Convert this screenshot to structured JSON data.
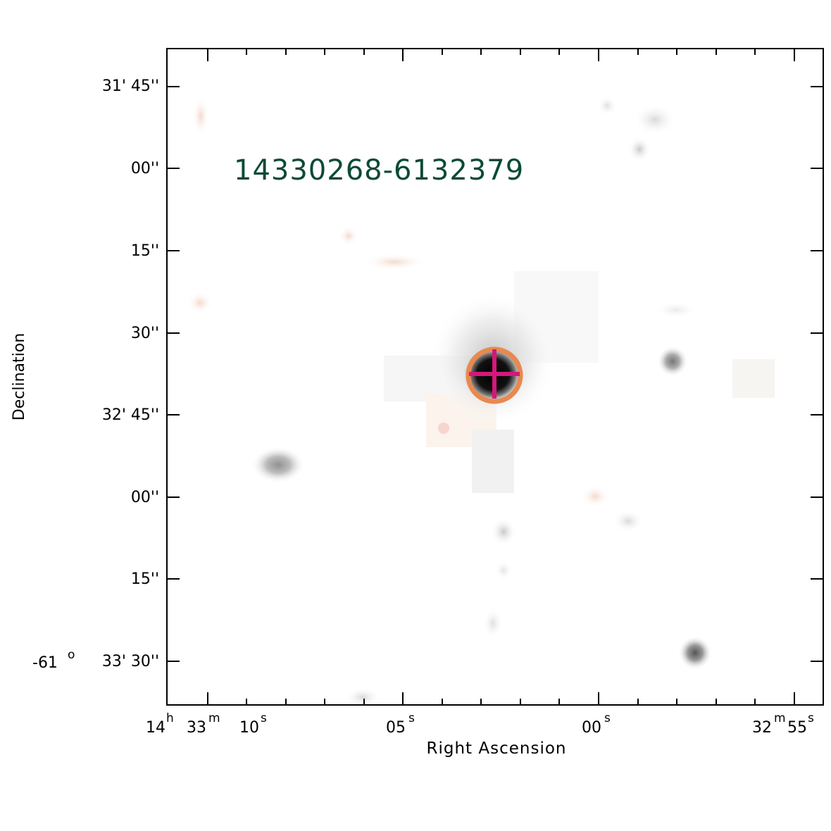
{
  "image": {
    "object_label": "14330268-6132379",
    "x_axis_label": "Right Ascension",
    "y_axis_label": "Declination",
    "colors": {
      "frame": "#000000",
      "label": "#0c4a36",
      "circle": "#e8894f",
      "cross": "#d4187a"
    },
    "y_ticks": [
      {
        "main": "31' 45''",
        "prefix": ""
      },
      {
        "main": "00''",
        "prefix": ""
      },
      {
        "main": "15''",
        "prefix": ""
      },
      {
        "main": "30''",
        "prefix": ""
      },
      {
        "main": "32' 45''",
        "prefix": ""
      },
      {
        "main": "00''",
        "prefix": ""
      },
      {
        "main": "15''",
        "prefix": ""
      },
      {
        "main": "33' 30''",
        "prefix": "-61",
        "prefix_sup": "o"
      }
    ],
    "x_ticks": {
      "t0_hours": "14",
      "t0_h_sup": "h",
      "t0_min": "33",
      "t0_m_sup": "m",
      "t0_sec": "10",
      "t0_s_sup": "s",
      "t1_sec": "05",
      "t1_s_sup": "s",
      "t2_sec": "00",
      "t2_s_sup": "s",
      "t3_min": "32",
      "t3_m_sup": "m",
      "t3_sec": "55",
      "t3_s_sup": "s"
    },
    "markers": [
      {
        "type": "target-circle",
        "color": "#e8894f"
      },
      {
        "type": "target-cross",
        "color": "#d4187a"
      }
    ]
  }
}
